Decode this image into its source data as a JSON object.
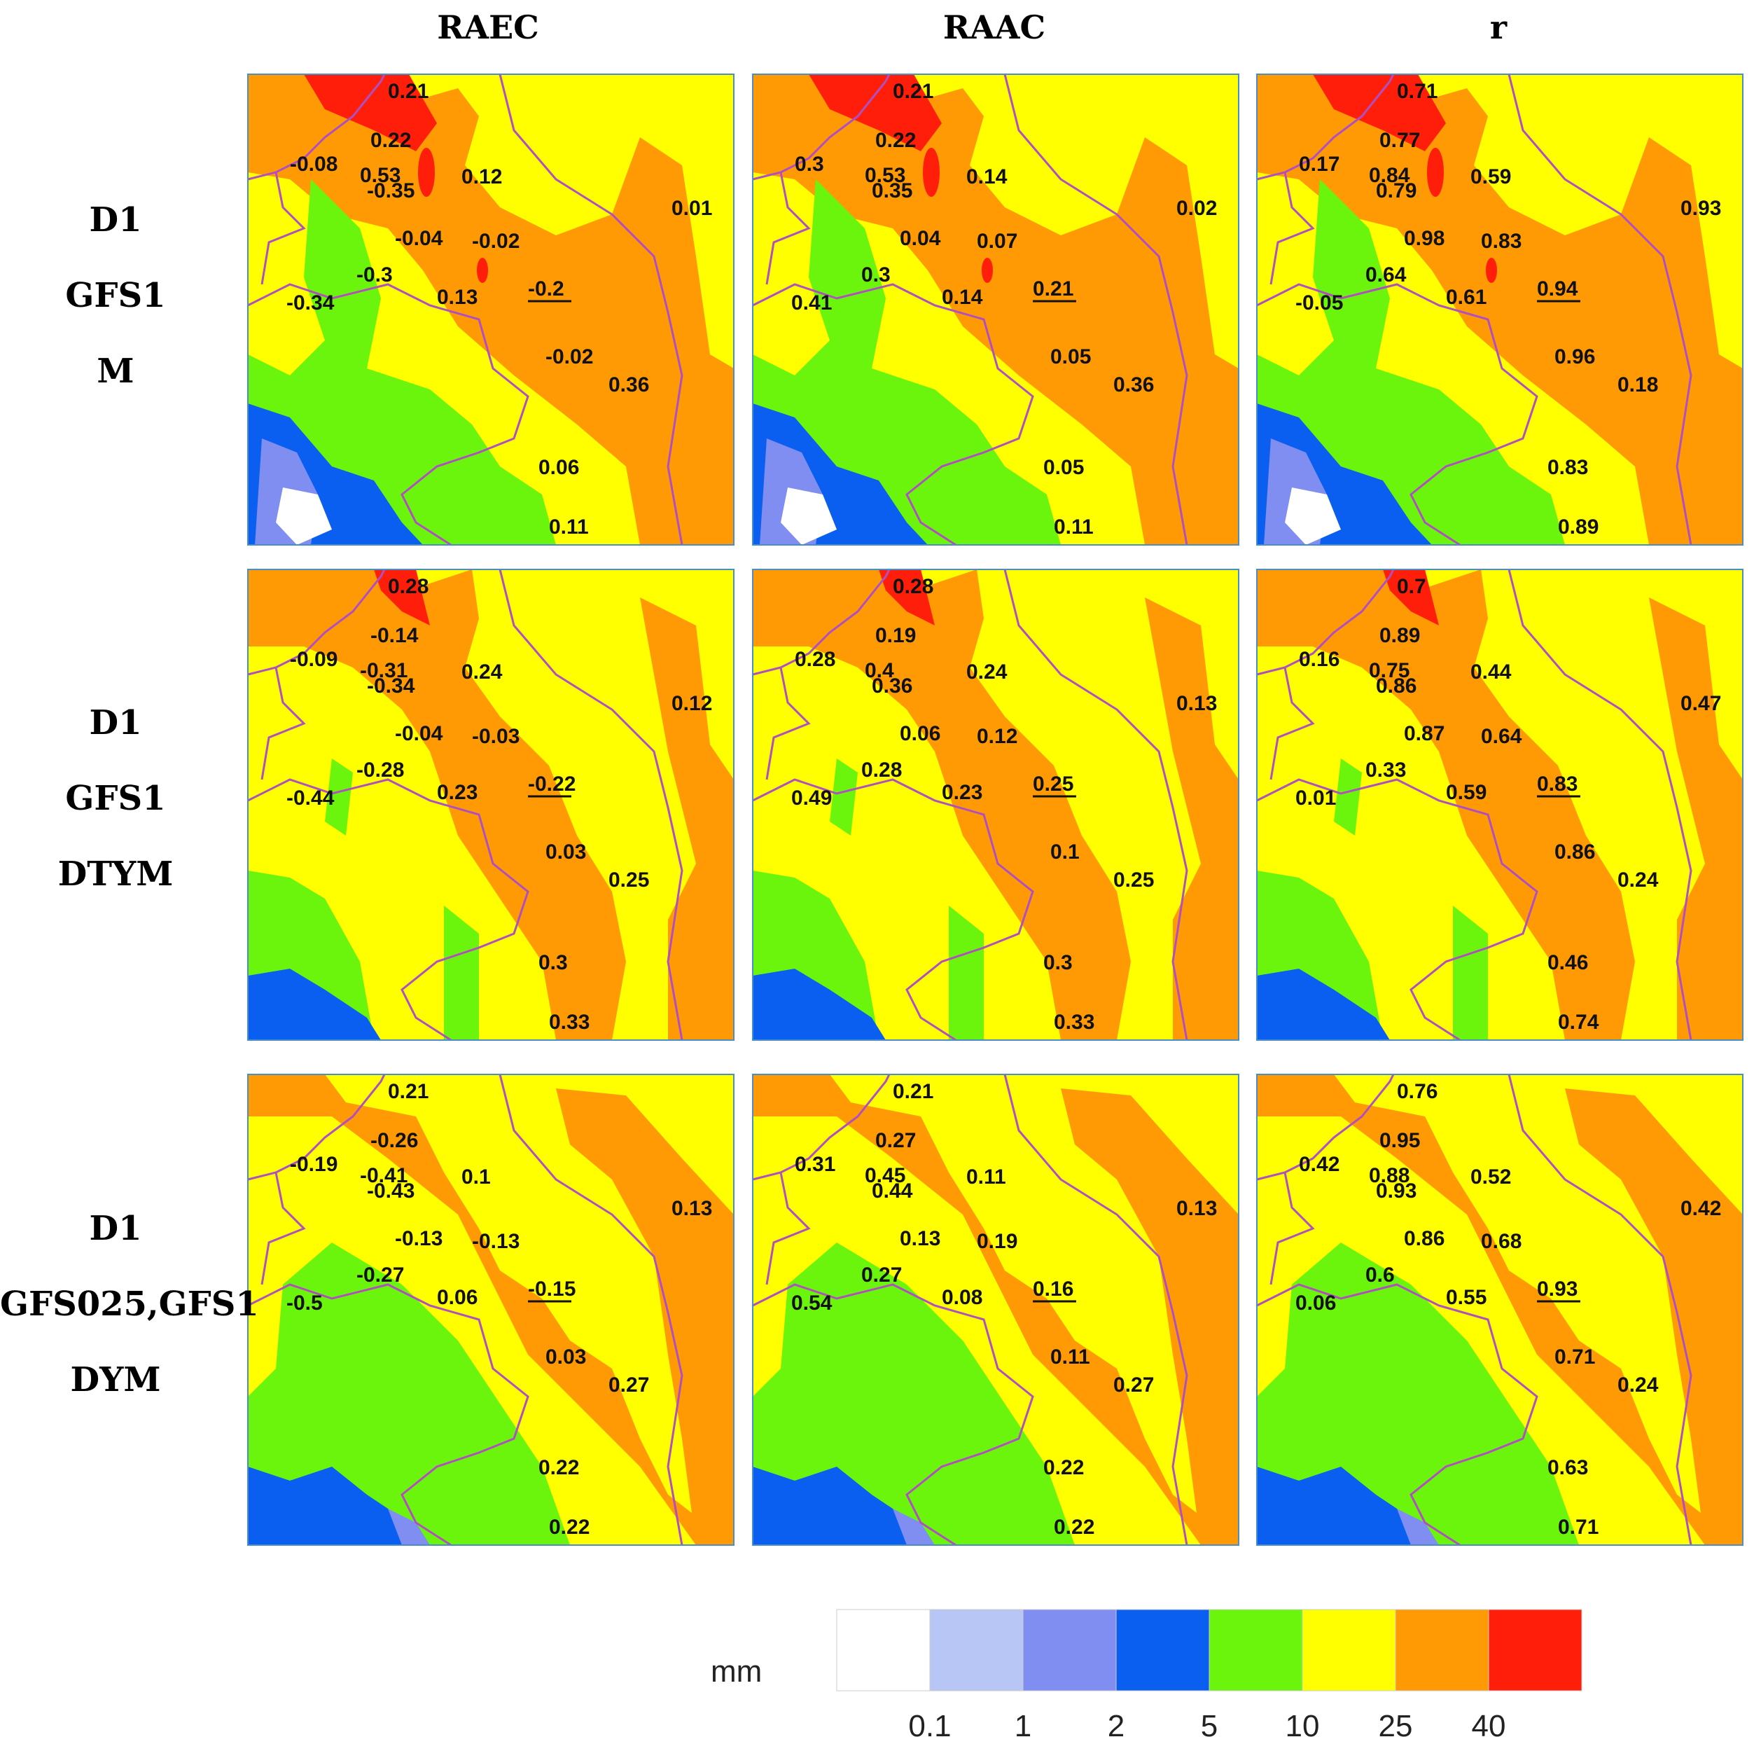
{
  "columns": [
    "RAEC",
    "RAAC",
    "r"
  ],
  "rows": [
    {
      "lines": [
        "D1",
        "GFS1",
        "M"
      ]
    },
    {
      "lines": [
        "D1",
        "GFS1",
        "DTYM"
      ]
    },
    {
      "lines": [
        "D1",
        "GFS025,GFS1",
        "DYM"
      ]
    }
  ],
  "legend": {
    "unit": "mm",
    "ticks": [
      "0.1",
      "1",
      "2",
      "5",
      "10",
      "25",
      "40"
    ],
    "colors": [
      "#ffffff",
      "#b8c6f5",
      "#7f8ef0",
      "#0a5ff0",
      "#6cf50c",
      "#ffff00",
      "#ff9a05",
      "#ff1e0a"
    ]
  },
  "colors": {
    "yellow": "#ffff00",
    "orange": "#ff9a05",
    "red": "#ff1e0a",
    "green": "#6cf50c",
    "blue": "#0a5ff0",
    "light_blue": "#7f8ef0",
    "pale_blue": "#b8c6f5",
    "border": "#b050c0"
  },
  "station_values": {
    "panel_0_0": [
      "0.21",
      "0.22",
      "-0.08",
      "0.53",
      "-0.35",
      "0.12",
      "0.01",
      "-0.04",
      "-0.02",
      "-0.3",
      "0.13",
      "-0.2",
      "-0.34",
      "-0.02",
      "0.36",
      "0.06",
      "0.11"
    ],
    "panel_0_1": [
      "0.21",
      "0.22",
      "0.3",
      "0.53",
      "0.35",
      "0.14",
      "0.02",
      "0.04",
      "0.07",
      "0.3",
      "0.14",
      "0.21",
      "0.41",
      "0.05",
      "0.36",
      "0.05",
      "0.11"
    ],
    "panel_0_2": [
      "0.71",
      "0.77",
      "0.17",
      "0.84",
      "0.79",
      "0.59",
      "0.93",
      "0.98",
      "0.83",
      "0.64",
      "0.61",
      "0.94",
      "-0.05",
      "0.96",
      "0.18",
      "0.83",
      "0.89"
    ],
    "panel_1_0": [
      "0.28",
      "-0.14",
      "-0.09",
      "-0.31",
      "-0.34",
      "0.24",
      "0.12",
      "-0.04",
      "-0.03",
      "-0.28",
      "0.23",
      "-0.22",
      "-0.44",
      "0.03",
      "0.25",
      "0.3",
      "0.33"
    ],
    "panel_1_1": [
      "0.28",
      "0.19",
      "0.28",
      "0.4",
      "0.36",
      "0.24",
      "0.13",
      "0.06",
      "0.12",
      "0.28",
      "0.23",
      "0.25",
      "0.49",
      "0.1",
      "0.25",
      "0.3",
      "0.33"
    ],
    "panel_1_2": [
      "0.7",
      "0.89",
      "0.16",
      "0.75",
      "0.86",
      "0.44",
      "0.47",
      "0.87",
      "0.64",
      "0.33",
      "0.59",
      "0.83",
      "0.01",
      "0.86",
      "0.24",
      "0.46",
      "0.74"
    ],
    "panel_2_0": [
      "0.21",
      "-0.26",
      "-0.19",
      "-0.41",
      "-0.43",
      "0.1",
      "0.13",
      "-0.13",
      "-0.13",
      "-0.27",
      "0.06",
      "-0.15",
      "-0.5",
      "0.03",
      "0.27",
      "0.22",
      "0.22"
    ],
    "panel_2_1": [
      "0.21",
      "0.27",
      "0.31",
      "0.45",
      "0.44",
      "0.11",
      "0.13",
      "0.13",
      "0.19",
      "0.27",
      "0.08",
      "0.16",
      "0.54",
      "0.11",
      "0.27",
      "0.22",
      "0.22"
    ],
    "panel_2_2": [
      "0.76",
      "0.95",
      "0.42",
      "0.88",
      "0.93",
      "0.52",
      "0.42",
      "0.86",
      "0.68",
      "0.6",
      "0.55",
      "0.93",
      "0.06",
      "0.71",
      "0.24",
      "0.63",
      "0.71"
    ]
  }
}
